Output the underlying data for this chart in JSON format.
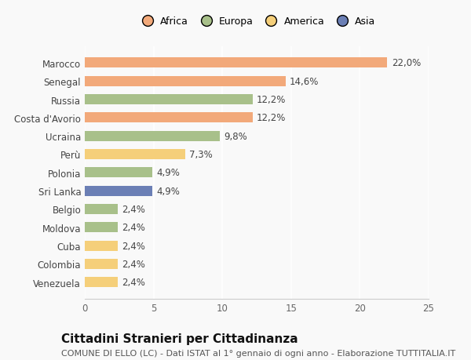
{
  "categories": [
    "Venezuela",
    "Colombia",
    "Cuba",
    "Moldova",
    "Belgio",
    "Sri Lanka",
    "Polonia",
    "Perù",
    "Ucraina",
    "Costa d'Avorio",
    "Russia",
    "Senegal",
    "Marocco"
  ],
  "values": [
    2.4,
    2.4,
    2.4,
    2.4,
    2.4,
    4.9,
    4.9,
    7.3,
    9.8,
    12.2,
    12.2,
    14.6,
    22.0
  ],
  "labels": [
    "2,4%",
    "2,4%",
    "2,4%",
    "2,4%",
    "2,4%",
    "4,9%",
    "4,9%",
    "7,3%",
    "9,8%",
    "12,2%",
    "12,2%",
    "14,6%",
    "22,0%"
  ],
  "colors": [
    "#F5CF7A",
    "#F5CF7A",
    "#F5CF7A",
    "#A8C08A",
    "#A8C08A",
    "#6B7FB5",
    "#A8C08A",
    "#F5CF7A",
    "#A8C08A",
    "#F2A97A",
    "#A8C08A",
    "#F2A97A",
    "#F2A97A"
  ],
  "legend": [
    {
      "label": "Africa",
      "color": "#F2A97A"
    },
    {
      "label": "Europa",
      "color": "#A8C08A"
    },
    {
      "label": "America",
      "color": "#F5CF7A"
    },
    {
      "label": "Asia",
      "color": "#6B7FB5"
    }
  ],
  "xlim": [
    0,
    25
  ],
  "xticks": [
    0,
    5,
    10,
    15,
    20,
    25
  ],
  "title": "Cittadini Stranieri per Cittadinanza",
  "subtitle": "COMUNE DI ELLO (LC) - Dati ISTAT al 1° gennaio di ogni anno - Elaborazione TUTTITALIA.IT",
  "background_color": "#f9f9f9",
  "bar_height": 0.55,
  "label_fontsize": 8.5,
  "tick_fontsize": 8.5,
  "title_fontsize": 11,
  "subtitle_fontsize": 8
}
